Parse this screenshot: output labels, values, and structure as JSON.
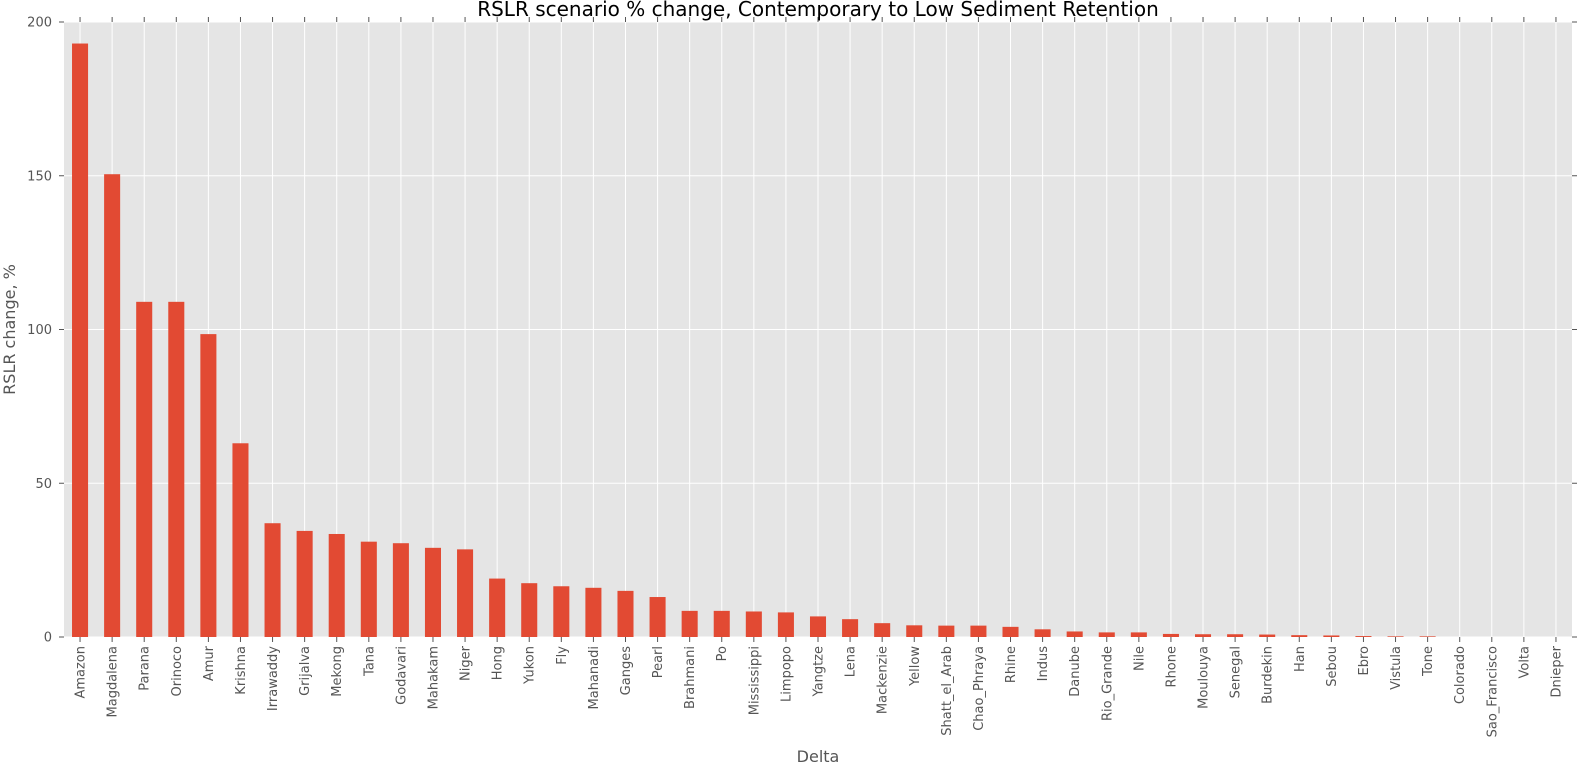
{
  "chart_data": {
    "type": "bar",
    "title": "RSLR scenario % change, Contemporary to Low Sediment Retention",
    "xlabel": "Delta",
    "ylabel": "RSLR change, %",
    "ylim": [
      0,
      200
    ],
    "yticks": [
      0,
      50,
      100,
      150,
      200
    ],
    "grid": true,
    "bar_color": "#e24a33",
    "plot_background": "#e5e5e5",
    "categories": [
      "Amazon",
      "Magdalena",
      "Parana",
      "Orinoco",
      "Amur",
      "Krishna",
      "Irrawaddy",
      "Grijalva",
      "Mekong",
      "Tana",
      "Godavari",
      "Mahakam",
      "Niger",
      "Hong",
      "Yukon",
      "Fly",
      "Mahanadi",
      "Ganges",
      "Pearl",
      "Brahmani",
      "Po",
      "Mississippi",
      "Limpopo",
      "Yangtze",
      "Lena",
      "Mackenzie",
      "Yellow",
      "Shatt_el_Arab",
      "Chao_Phraya",
      "Rhine",
      "Indus",
      "Danube",
      "Rio_Grande",
      "Nile",
      "Rhone",
      "Moulouya",
      "Senegal",
      "Burdekin",
      "Han",
      "Sebou",
      "Ebro",
      "Vistula",
      "Tone",
      "Colorado",
      "Sao_Francisco",
      "Volta",
      "Dnieper"
    ],
    "values": [
      193,
      150.5,
      109,
      109,
      98.5,
      63,
      37,
      34.5,
      33.5,
      31,
      30.5,
      29,
      28.5,
      19,
      17.5,
      16.5,
      16,
      15,
      13,
      8.5,
      8.5,
      8.3,
      8,
      6.7,
      5.8,
      4.5,
      3.8,
      3.7,
      3.7,
      3.3,
      2.5,
      1.8,
      1.5,
      1.5,
      1,
      0.9,
      0.9,
      0.8,
      0.6,
      0.5,
      0.3,
      0.2,
      0.2,
      0,
      0,
      0,
      0
    ]
  }
}
